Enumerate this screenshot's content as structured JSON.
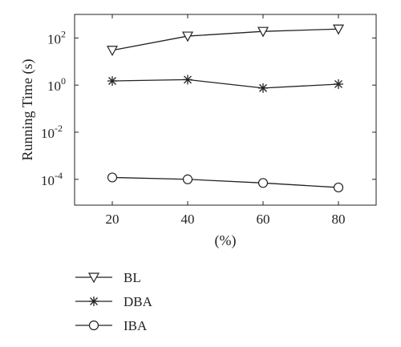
{
  "chart_data": {
    "type": "line",
    "title": "",
    "xlabel": "(%)",
    "ylabel": "Running Time (s)",
    "x": [
      20,
      40,
      60,
      80
    ],
    "xlim": [
      10,
      90
    ],
    "xticks": [
      20,
      40,
      60,
      80
    ],
    "yscale": "log",
    "ylim": [
      8e-06,
      1000
    ],
    "yticks": [
      {
        "value": 100,
        "base": "10",
        "exp": "2"
      },
      {
        "value": 1,
        "base": "10",
        "exp": "0"
      },
      {
        "value": 0.01,
        "base": "10",
        "exp": "-2"
      },
      {
        "value": 0.0001,
        "base": "10",
        "exp": "-4"
      }
    ],
    "grid": false,
    "legend_position": "bottom-left",
    "series": [
      {
        "name": "BL",
        "marker": "triangle-down",
        "values": [
          30,
          120,
          190,
          240
        ]
      },
      {
        "name": "DBA",
        "marker": "asterisk",
        "values": [
          1.5,
          1.7,
          0.75,
          1.1
        ]
      },
      {
        "name": "IBA",
        "marker": "circle",
        "values": [
          0.00012,
          0.0001,
          7e-05,
          4.5e-05
        ]
      }
    ]
  }
}
